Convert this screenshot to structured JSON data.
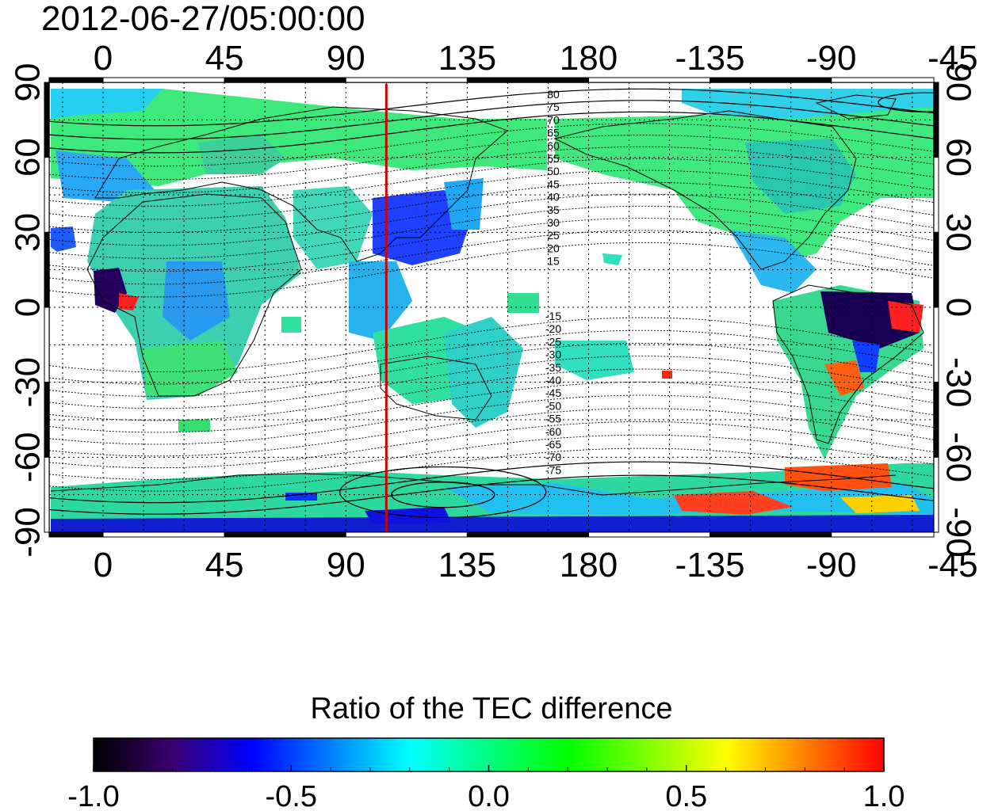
{
  "header": {
    "timestamp": "2012-06-27/05:00:00"
  },
  "map": {
    "projection": "equirectangular",
    "lon_range_deg": [
      -20,
      308
    ],
    "lat_range_deg": [
      -90,
      90
    ],
    "top_tick_labels": [
      "0",
      "45",
      "90",
      "135",
      "180",
      "-135",
      "-90",
      "-45"
    ],
    "bottom_tick_labels": [
      "0",
      "45",
      "90",
      "135",
      "180",
      "-135",
      "-90",
      "-45"
    ],
    "tick_lon_values": [
      0,
      45,
      90,
      135,
      180,
      225,
      270,
      315
    ],
    "left_tick_labels": [
      "90",
      "60",
      "30",
      "0",
      "-30",
      "-60",
      "-90"
    ],
    "right_tick_labels": [
      "90",
      "60",
      "30",
      "0",
      "-30",
      "-60",
      "-90"
    ],
    "tick_lat_values": [
      90,
      60,
      30,
      0,
      -30,
      -60,
      -90
    ],
    "grid": true,
    "meridian_marker": {
      "lon_deg": 105,
      "color": "#d00000"
    },
    "contour_labels": [
      "80",
      "75",
      "70",
      "65",
      "60",
      "55",
      "50",
      "45",
      "40",
      "35",
      "30",
      "25",
      "20",
      "15",
      "-15",
      "-20",
      "-25",
      "-30",
      "-35",
      "-40",
      "-45",
      "-50",
      "-55",
      "-60",
      "-65",
      "-70",
      "-75"
    ]
  },
  "colorbar": {
    "title": "Ratio of the TEC difference",
    "range": [
      -1.0,
      1.0
    ],
    "tick_labels": [
      "-1.0",
      "-0.5",
      "0.0",
      "0.5",
      "1.0"
    ],
    "colors": [
      "#000000",
      "#3a0070",
      "#0000ff",
      "#0080ff",
      "#00ffff",
      "#00ff80",
      "#00ff00",
      "#80ff00",
      "#ffff00",
      "#ff8000",
      "#ff0000"
    ]
  }
}
